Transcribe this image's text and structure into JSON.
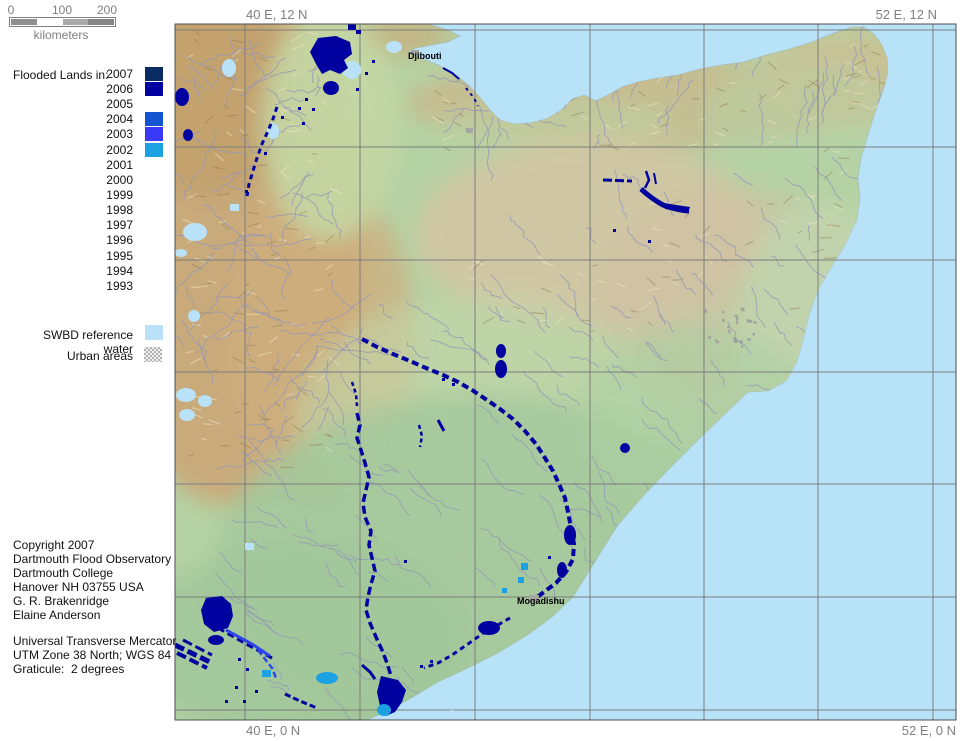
{
  "scale_bar": {
    "ticks": [
      "0",
      "100",
      "200"
    ],
    "unit": "kilometers"
  },
  "corner_labels": {
    "top_left": "40 E, 12 N",
    "top_right": "52 E, 12 N",
    "bottom_left": "40 E, 0 N",
    "bottom_right": "52 E, 0 N"
  },
  "legend": {
    "flooded_title": "Flooded Lands in:",
    "years": [
      {
        "label": "2007",
        "color": "#0b2b63"
      },
      {
        "label": "2006",
        "color": "#0202a0"
      },
      {
        "label": "2005",
        "color": null
      },
      {
        "label": "2004",
        "color": "#1454d0"
      },
      {
        "label": "2003",
        "color": "#3a3af6"
      },
      {
        "label": "2002",
        "color": "#1ca2e2"
      },
      {
        "label": "2001",
        "color": null
      },
      {
        "label": "2000",
        "color": null
      },
      {
        "label": "1999",
        "color": null
      },
      {
        "label": "1998",
        "color": null
      },
      {
        "label": "1997",
        "color": null
      },
      {
        "label": "1996",
        "color": null
      },
      {
        "label": "1995",
        "color": null
      },
      {
        "label": "1994",
        "color": null
      },
      {
        "label": "1993",
        "color": null
      }
    ],
    "swbd_label": "SWBD reference water",
    "swbd_color": "#b9e2f8",
    "urban_label": "Urban areas"
  },
  "credits": {
    "block1": [
      "Copyright 2007",
      "Dartmouth Flood Observatory",
      "Dartmouth College",
      "Hanover NH 03755 USA",
      "G. R. Brakenridge",
      "Elaine Anderson"
    ],
    "block2": [
      "Universal Transverse Mercator",
      "UTM Zone 38 North; WGS 84",
      "Graticule:  2 degrees"
    ]
  },
  "map": {
    "cities": {
      "djibouti": "Djibouti",
      "mogadishu": "Mogadishu"
    },
    "colors": {
      "ocean": "#b8e2f7",
      "land": "#b5d2a4",
      "grid": "#7d7d7d",
      "river": "#9598b6",
      "flood": "#0101a0",
      "flood_2003": "#2f46ea",
      "flood_2002": "#1ca2e2",
      "reference_water": "#b9e2f8",
      "urban": "#a5a5a5",
      "border": "#4f4f4f"
    }
  }
}
